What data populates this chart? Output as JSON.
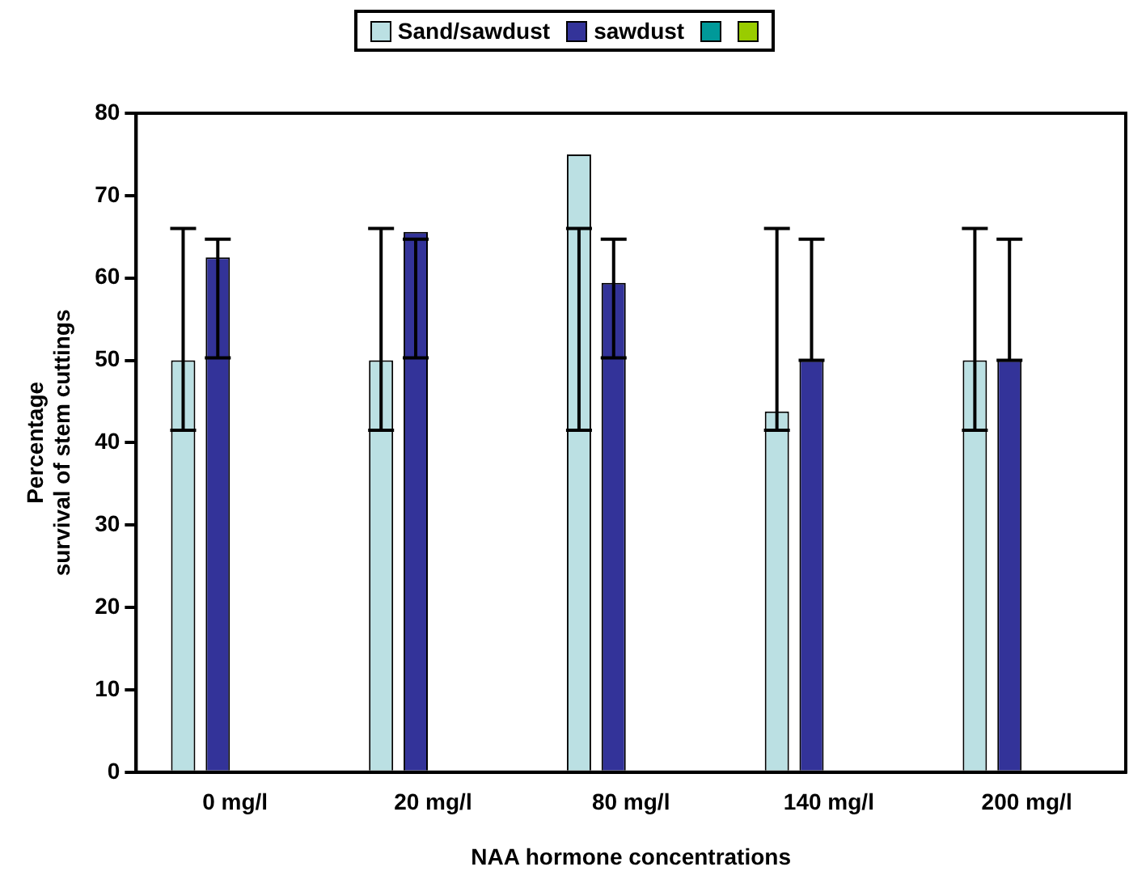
{
  "chart_data": {
    "type": "bar",
    "xlabel": "NAA hormone concentrations",
    "ylabel": "Percentage\nsurvival of stem cuttings",
    "categories": [
      "0 mg/l",
      "20 mg/l",
      "80 mg/l",
      "140 mg/l",
      "200 mg/l"
    ],
    "series": [
      {
        "name": "Sand/sawdust",
        "color": "#bbe0e3",
        "values": [
          50,
          50,
          75,
          43.8,
          50
        ],
        "errors": [
          [
            41.5,
            66
          ],
          [
            41.5,
            66
          ],
          [
            41.5,
            66
          ],
          [
            41.5,
            66
          ],
          [
            41.5,
            66
          ]
        ]
      },
      {
        "name": "sawdust",
        "color": "#333399",
        "values": [
          62.5,
          65.6,
          59.4,
          50,
          50
        ],
        "errors": [
          [
            50.3,
            64.7
          ],
          [
            50.3,
            64.7
          ],
          [
            50.3,
            64.7
          ],
          [
            50,
            64.7
          ],
          [
            50,
            64.7
          ]
        ]
      },
      {
        "color": "#009999",
        "values": [
          null,
          null,
          null,
          null,
          null
        ]
      },
      {
        "color": "#99cc00",
        "values": [
          null,
          null,
          null,
          null,
          null
        ]
      }
    ],
    "ylim": [
      0,
      80
    ],
    "yticks": [
      0,
      10,
      20,
      30,
      40,
      50,
      60,
      70,
      80
    ],
    "grid": false,
    "legend": "top"
  }
}
